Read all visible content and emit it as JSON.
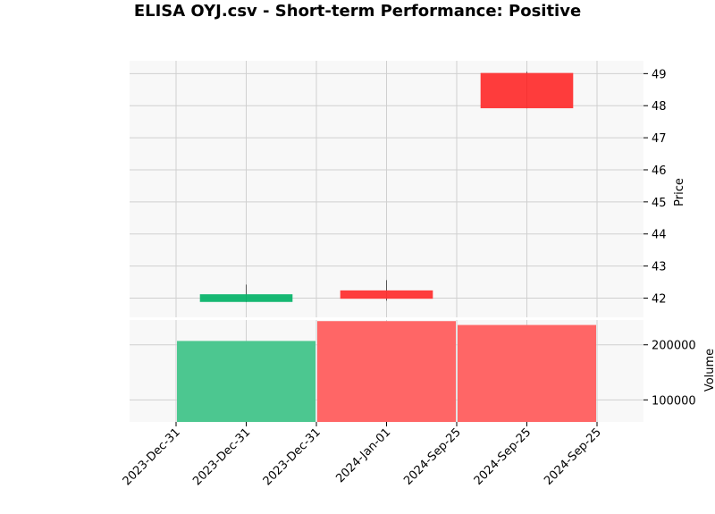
{
  "chart_data": {
    "type": "candlestick",
    "title": "ELISA OYJ.csv - Short-term Performance: Positive",
    "x_tick_labels": [
      "2023-Dec-31",
      "2023-Dec-31",
      "2023-Dec-31",
      "2024-Jan-01",
      "2024-Sep-25",
      "2024-Sep-25",
      "2024-Sep-25"
    ],
    "price_panel": {
      "ylabel": "Price",
      "ylim": [
        41.4,
        49.4
      ],
      "yticks": [
        42,
        43,
        44,
        45,
        46,
        47,
        48,
        49
      ],
      "grid": true,
      "axis_side": "right"
    },
    "volume_panel": {
      "ylabel": "Volume",
      "ylim": [
        60000,
        245000
      ],
      "yticks": [
        100000,
        200000
      ],
      "tick_labels": [
        "100000",
        "200000"
      ],
      "grid": true,
      "axis_side": "right"
    },
    "candles": [
      {
        "date": "2023-Dec-31",
        "open": 41.88,
        "high": 42.42,
        "low": 41.88,
        "close": 42.12,
        "volume": 207000,
        "direction": "up"
      },
      {
        "date": "2024-Jan-01",
        "open": 42.24,
        "high": 42.56,
        "low": 41.92,
        "close": 41.98,
        "volume": 243000,
        "direction": "down"
      },
      {
        "date": "2024-Sep-25",
        "open": 49.02,
        "high": 49.06,
        "low": 47.92,
        "close": 47.92,
        "volume": 236000,
        "direction": "down"
      }
    ],
    "colors": {
      "up": "#0bb46c",
      "down": "#fe3232",
      "volume_up": "#4cc790",
      "volume_down": "#ff6666",
      "panel_bg": "#f8f8f8",
      "grid": "#d0d0d0",
      "wick": "#555555"
    }
  }
}
